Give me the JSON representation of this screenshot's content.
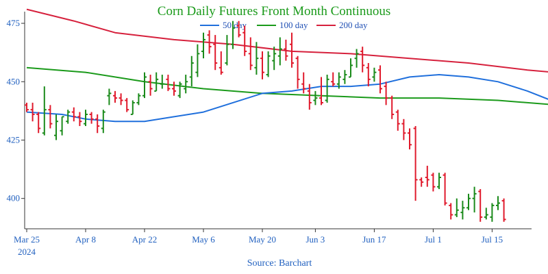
{
  "chart_data": {
    "type": "ohlc",
    "title": "Corn Daily Futures Front Month Continuous",
    "source": "Source: Barchart",
    "colors": {
      "title": "#1a9a1a",
      "up": "#1a8a1a",
      "down": "#e0192b",
      "ma50": "#1f6fdc",
      "ma100": "#1a9a1a",
      "ma200": "#d6203c",
      "axis": "#333333"
    },
    "legend": [
      {
        "name": "50 day",
        "key": "ma50"
      },
      {
        "name": "100 day",
        "key": "ma100"
      },
      {
        "name": "200 day",
        "key": "ma200"
      }
    ],
    "ylim": [
      387,
      480
    ],
    "y_ticks": [
      400,
      425,
      450,
      475
    ],
    "x_tick_labels": [
      "Mar 25",
      "Apr 8",
      "Apr 22",
      "May 6",
      "May 20",
      "Jun 3",
      "Jun 17",
      "Jul 1",
      "Jul 15"
    ],
    "x_tick_indices": [
      0,
      10,
      20,
      30,
      40,
      49,
      59,
      69,
      79
    ],
    "x_year_label": "2024",
    "candles": [
      [
        440,
        441,
        437,
        438
      ],
      [
        438,
        441,
        433,
        436
      ],
      [
        436,
        437,
        428,
        430
      ],
      [
        428,
        448,
        427,
        438
      ],
      [
        438,
        440,
        430,
        432
      ],
      [
        427,
        436,
        425,
        433
      ],
      [
        429,
        435,
        427,
        435
      ],
      [
        433,
        438,
        432,
        437
      ],
      [
        437,
        439,
        433,
        435
      ],
      [
        435,
        437,
        431,
        433
      ],
      [
        432,
        438,
        431,
        436
      ],
      [
        436,
        437,
        432,
        434
      ],
      [
        434,
        436,
        428,
        431
      ],
      [
        430,
        438,
        428,
        437
      ],
      [
        444,
        447,
        440,
        445
      ],
      [
        444,
        446,
        441,
        443
      ],
      [
        443,
        445,
        440,
        442
      ],
      [
        442,
        443,
        437,
        438
      ],
      [
        436,
        442,
        436,
        441
      ],
      [
        441,
        445,
        440,
        444
      ],
      [
        444,
        454,
        443,
        452
      ],
      [
        450,
        453,
        444,
        447
      ],
      [
        446,
        454,
        446,
        451
      ],
      [
        449,
        453,
        447,
        449
      ],
      [
        451,
        453,
        446,
        447
      ],
      [
        447,
        450,
        444,
        446
      ],
      [
        444,
        450,
        443,
        449
      ],
      [
        447,
        453,
        445,
        450
      ],
      [
        452,
        461,
        448,
        458
      ],
      [
        454,
        466,
        452,
        462
      ],
      [
        463,
        471,
        460,
        468
      ],
      [
        470,
        472,
        462,
        465
      ],
      [
        466,
        470,
        455,
        458
      ],
      [
        456,
        463,
        453,
        454
      ],
      [
        458,
        470,
        457,
        466
      ],
      [
        466,
        476,
        464,
        473
      ],
      [
        474,
        476,
        469,
        470
      ],
      [
        471,
        474,
        461,
        463
      ],
      [
        462,
        469,
        455,
        457
      ],
      [
        456,
        467,
        453,
        460
      ],
      [
        460,
        463,
        451,
        454
      ],
      [
        453,
        463,
        452,
        461
      ],
      [
        459,
        465,
        455,
        462
      ],
      [
        461,
        469,
        457,
        464
      ],
      [
        464,
        468,
        459,
        461
      ],
      [
        466,
        471,
        456,
        458
      ],
      [
        460,
        461,
        447,
        451
      ],
      [
        449,
        454,
        445,
        447
      ],
      [
        446,
        449,
        438,
        441
      ],
      [
        442,
        446,
        440,
        443
      ],
      [
        443,
        452,
        440,
        441
      ],
      [
        442,
        453,
        441,
        451
      ],
      [
        450,
        454,
        448,
        449
      ],
      [
        449,
        454,
        447,
        452
      ],
      [
        451,
        455,
        449,
        453
      ],
      [
        452,
        460,
        452,
        457
      ],
      [
        460,
        464,
        456,
        462
      ],
      [
        463,
        465,
        454,
        457
      ],
      [
        456,
        458,
        448,
        451
      ],
      [
        452,
        456,
        450,
        454
      ],
      [
        455,
        457,
        445,
        447
      ],
      [
        448,
        450,
        440,
        443
      ],
      [
        443,
        444,
        434,
        436
      ],
      [
        437,
        438,
        429,
        432
      ],
      [
        432,
        434,
        425,
        428
      ],
      [
        428,
        430,
        421,
        423
      ],
      [
        430,
        431,
        399,
        408
      ],
      [
        408,
        409,
        405,
        407
      ],
      [
        409,
        414,
        405,
        408
      ],
      [
        410,
        411,
        403,
        405
      ],
      [
        405,
        411,
        404,
        409
      ],
      [
        410,
        411,
        397,
        398
      ],
      [
        397,
        398,
        391,
        393
      ],
      [
        393,
        400,
        392,
        395
      ],
      [
        394,
        399,
        391,
        396
      ],
      [
        396,
        402,
        395,
        400
      ],
      [
        400,
        405,
        394,
        402
      ],
      [
        403,
        404,
        390,
        392
      ],
      [
        392,
        396,
        391,
        393
      ],
      [
        392,
        398,
        390,
        397
      ],
      [
        397,
        401,
        395,
        398
      ],
      [
        399,
        400,
        390,
        391
      ]
    ],
    "ma50": [
      [
        0,
        437
      ],
      [
        6,
        436
      ],
      [
        10,
        434
      ],
      [
        15,
        433
      ],
      [
        20,
        433
      ],
      [
        25,
        435
      ],
      [
        30,
        437
      ],
      [
        35,
        441
      ],
      [
        40,
        445
      ],
      [
        45,
        446
      ],
      [
        50,
        448
      ],
      [
        55,
        448
      ],
      [
        60,
        449
      ],
      [
        65,
        452
      ],
      [
        70,
        453
      ],
      [
        75,
        452
      ],
      [
        80,
        450
      ],
      [
        85,
        446
      ],
      [
        90,
        441
      ],
      [
        94,
        438.5
      ]
    ],
    "ma100": [
      [
        0,
        456
      ],
      [
        10,
        454
      ],
      [
        20,
        450
      ],
      [
        30,
        447
      ],
      [
        40,
        445
      ],
      [
        50,
        444
      ],
      [
        60,
        443
      ],
      [
        70,
        443
      ],
      [
        80,
        442
      ],
      [
        90,
        440
      ],
      [
        94,
        438.5
      ]
    ],
    "ma200": [
      [
        0,
        481
      ],
      [
        8,
        476
      ],
      [
        15,
        471
      ],
      [
        25,
        468
      ],
      [
        35,
        466
      ],
      [
        45,
        463
      ],
      [
        55,
        462
      ],
      [
        65,
        460
      ],
      [
        75,
        458
      ],
      [
        85,
        455
      ],
      [
        94,
        453
      ]
    ]
  }
}
